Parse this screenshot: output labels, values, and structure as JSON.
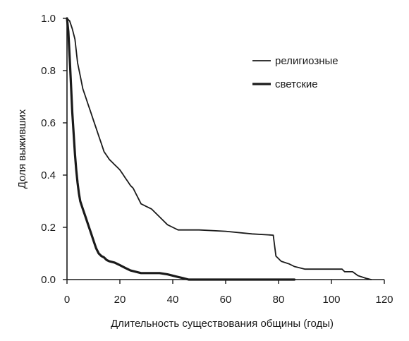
{
  "chart_data": {
    "type": "line",
    "title": "",
    "xlabel": "Длительность существования общины (годы)",
    "ylabel": "Доля выживших",
    "xlim": [
      0,
      120
    ],
    "ylim": [
      0,
      1.0
    ],
    "x_ticks": [
      0,
      20,
      40,
      60,
      80,
      100,
      120
    ],
    "y_ticks": [
      0.0,
      0.2,
      0.4,
      0.6,
      0.8,
      1.0
    ],
    "x_tick_labels": [
      "0",
      "20",
      "40",
      "60",
      "80",
      "100",
      "120"
    ],
    "y_tick_labels": [
      "0.0",
      "0.2",
      "0.4",
      "0.6",
      "0.8",
      "1.0"
    ],
    "grid": false,
    "legend_position": "top-right",
    "series": [
      {
        "name": "религиозные",
        "style": "thin",
        "color": "#1a1a1a",
        "points": [
          [
            0,
            1.0
          ],
          [
            1,
            0.99
          ],
          [
            2,
            0.96
          ],
          [
            3,
            0.92
          ],
          [
            4,
            0.83
          ],
          [
            5,
            0.78
          ],
          [
            6,
            0.73
          ],
          [
            7,
            0.7
          ],
          [
            8,
            0.67
          ],
          [
            9,
            0.64
          ],
          [
            10,
            0.61
          ],
          [
            11,
            0.58
          ],
          [
            12,
            0.55
          ],
          [
            13,
            0.52
          ],
          [
            14,
            0.49
          ],
          [
            15,
            0.475
          ],
          [
            16,
            0.46
          ],
          [
            17,
            0.45
          ],
          [
            18,
            0.44
          ],
          [
            19,
            0.43
          ],
          [
            20,
            0.42
          ],
          [
            21,
            0.405
          ],
          [
            22,
            0.39
          ],
          [
            23,
            0.375
          ],
          [
            24,
            0.36
          ],
          [
            25,
            0.35
          ],
          [
            26,
            0.33
          ],
          [
            27,
            0.31
          ],
          [
            28,
            0.29
          ],
          [
            30,
            0.28
          ],
          [
            32,
            0.27
          ],
          [
            34,
            0.25
          ],
          [
            36,
            0.23
          ],
          [
            38,
            0.21
          ],
          [
            40,
            0.2
          ],
          [
            42,
            0.19
          ],
          [
            50,
            0.19
          ],
          [
            60,
            0.185
          ],
          [
            70,
            0.175
          ],
          [
            78,
            0.17
          ],
          [
            79,
            0.09
          ],
          [
            80,
            0.08
          ],
          [
            81,
            0.07
          ],
          [
            84,
            0.06
          ],
          [
            86,
            0.05
          ],
          [
            90,
            0.04
          ],
          [
            100,
            0.04
          ],
          [
            104,
            0.04
          ],
          [
            105,
            0.03
          ],
          [
            108,
            0.03
          ],
          [
            110,
            0.015
          ],
          [
            113,
            0.005
          ],
          [
            115,
            0.0
          ]
        ]
      },
      {
        "name": "светские",
        "style": "thick",
        "color": "#1a1a1a",
        "points": [
          [
            0,
            1.0
          ],
          [
            0.5,
            0.95
          ],
          [
            1,
            0.85
          ],
          [
            1.5,
            0.75
          ],
          [
            2,
            0.64
          ],
          [
            2.5,
            0.56
          ],
          [
            3,
            0.48
          ],
          [
            3.5,
            0.42
          ],
          [
            4,
            0.37
          ],
          [
            4.5,
            0.33
          ],
          [
            5,
            0.3
          ],
          [
            6,
            0.27
          ],
          [
            7,
            0.24
          ],
          [
            8,
            0.21
          ],
          [
            9,
            0.18
          ],
          [
            10,
            0.15
          ],
          [
            11,
            0.12
          ],
          [
            12,
            0.1
          ],
          [
            13,
            0.09
          ],
          [
            14,
            0.085
          ],
          [
            15,
            0.075
          ],
          [
            16,
            0.07
          ],
          [
            18,
            0.065
          ],
          [
            20,
            0.055
          ],
          [
            22,
            0.045
          ],
          [
            24,
            0.035
          ],
          [
            26,
            0.03
          ],
          [
            28,
            0.025
          ],
          [
            30,
            0.025
          ],
          [
            35,
            0.025
          ],
          [
            38,
            0.02
          ],
          [
            40,
            0.015
          ],
          [
            42,
            0.01
          ],
          [
            44,
            0.005
          ],
          [
            46,
            0.0
          ],
          [
            86,
            0.0
          ]
        ]
      }
    ]
  }
}
